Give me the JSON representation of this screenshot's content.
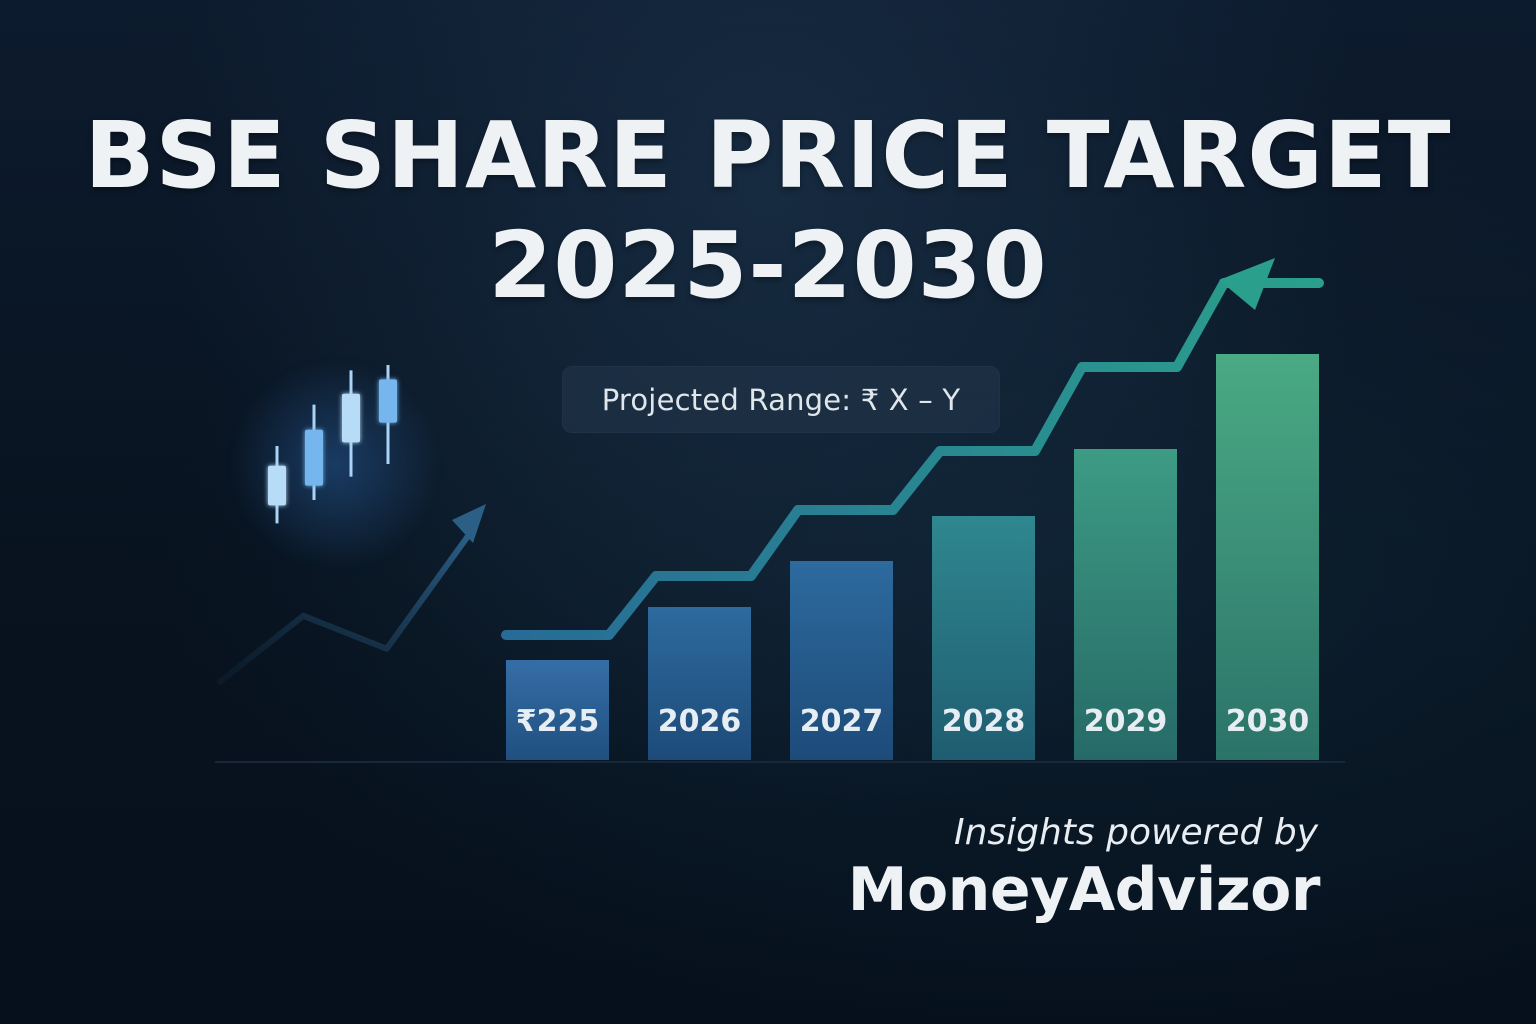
{
  "header": {
    "title_line1": "BSE SHARE PRICE TARGET",
    "title_line2": "2025-2030"
  },
  "badge": {
    "projected_range": "Projected Range: ₹ X – Y"
  },
  "footer": {
    "subtitle": "Insights powered by",
    "brand": "MoneyAdvizor"
  },
  "colors": {
    "background": "#081321",
    "bar_blue": "#2f679f",
    "bar_teal": "#2f8b87",
    "bar_green": "#43a782",
    "trend_line": "#2b8c9a",
    "candle_glow": "#5ca7eb"
  },
  "chart_data": {
    "type": "bar",
    "categories": [
      "₹225",
      "2026",
      "2027",
      "2028",
      "2029",
      "2030"
    ],
    "values": [
      1.0,
      1.53,
      1.99,
      2.44,
      3.11,
      4.06
    ],
    "trend": [
      1.25,
      1.84,
      2.5,
      3.09,
      3.93,
      4.77
    ],
    "title": "BSE SHARE PRICE TARGET 2025-2030",
    "xlabel": "",
    "ylabel": "",
    "ylim": [
      0,
      5
    ],
    "grid": false,
    "legend": "none",
    "trend_arrow": true
  },
  "decorations": {
    "left_trend": {
      "values": [
        0.05,
        0.45,
        0.25,
        0.95
      ]
    },
    "candles": [
      {
        "low": 0.12,
        "high": 0.55,
        "open": 0.22,
        "close": 0.44
      },
      {
        "low": 0.25,
        "high": 0.78,
        "open": 0.33,
        "close": 0.64
      },
      {
        "low": 0.38,
        "high": 0.97,
        "open": 0.57,
        "close": 0.84
      },
      {
        "low": 0.45,
        "high": 1.0,
        "open": 0.68,
        "close": 0.92
      }
    ]
  }
}
